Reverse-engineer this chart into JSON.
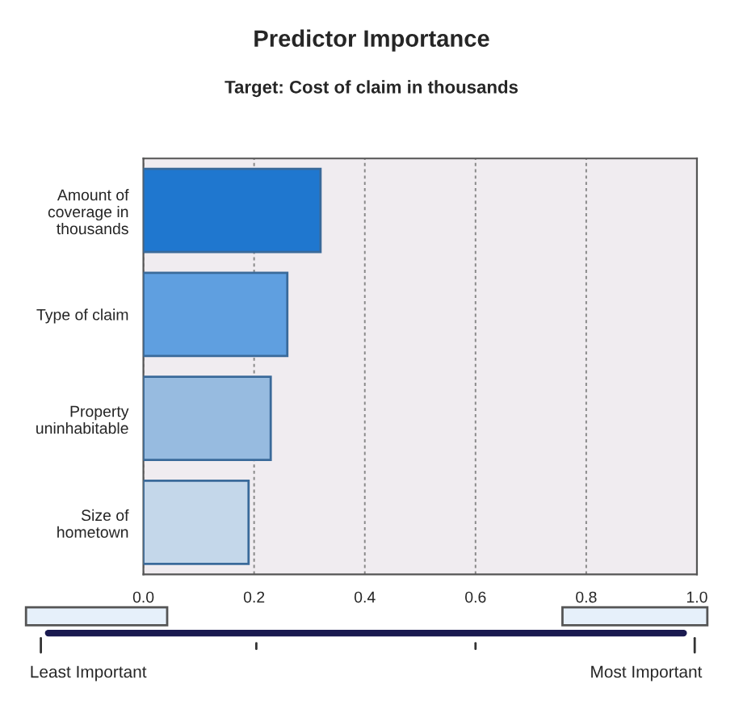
{
  "chart_data": {
    "type": "bar",
    "orientation": "horizontal",
    "title": "Predictor Importance",
    "subtitle": "Target: Cost of claim in thousands",
    "categories": [
      "Amount of\ncoverage in\nthousands",
      "Type of claim",
      "Property\nuninhabitable",
      "Size of\nhometown"
    ],
    "values": [
      0.32,
      0.26,
      0.23,
      0.19
    ],
    "colors": [
      "#1f77cf",
      "#5f9fe0",
      "#97bbe0",
      "#c4d7ea"
    ],
    "xlim": [
      0,
      1
    ],
    "xticks": [
      {
        "value": 0,
        "label": "0.0"
      },
      0.2,
      0.4,
      0.6,
      0.8,
      {
        "value": 1,
        "label": "1.0"
      }
    ],
    "grid": "x",
    "annotations": [
      "Least Important",
      "Most Important"
    ]
  }
}
